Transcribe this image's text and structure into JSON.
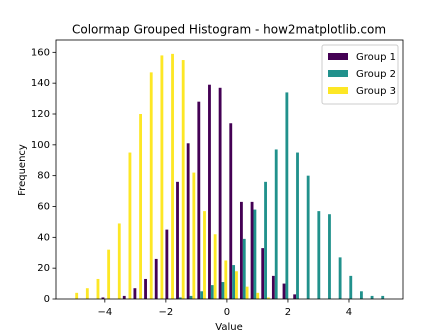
{
  "chart_data": {
    "type": "grouped-histogram",
    "title": "Colormap Grouped Histogram - how2matplotlib.com",
    "x_label": "Value",
    "y_label": "Frequency",
    "bins": [
      -5.19,
      -4.841,
      -4.492,
      -4.143,
      -3.794,
      -3.445,
      -3.096,
      -2.747,
      -2.398,
      -2.049,
      -1.7,
      -1.351,
      -1.002,
      -0.653,
      -0.304,
      0.045,
      0.394,
      0.743,
      1.092,
      1.441,
      1.79,
      2.139,
      2.488,
      2.837,
      3.186,
      3.535,
      3.884,
      4.233,
      4.582,
      4.931,
      5.28
    ],
    "series": [
      {
        "name": "Group 1",
        "color": "#440154",
        "values": [
          0,
          0,
          0,
          1,
          0,
          2,
          7,
          13,
          26,
          45,
          76,
          101,
          128,
          139,
          137,
          114,
          63,
          63,
          33,
          15,
          10,
          3,
          0,
          0,
          0,
          0,
          0,
          0,
          0,
          0
        ]
      },
      {
        "name": "Group 2",
        "color": "#21918c",
        "values": [
          0,
          0,
          0,
          0,
          0,
          0,
          0,
          0,
          0,
          0,
          1,
          2,
          5,
          9,
          11,
          22,
          39,
          58,
          76,
          97,
          134,
          95,
          80,
          57,
          55,
          27,
          15,
          5,
          2,
          2
        ]
      },
      {
        "name": "Group 3",
        "color": "#fde725",
        "values": [
          4,
          7,
          13,
          32,
          49,
          95,
          120,
          147,
          158,
          159,
          155,
          82,
          57,
          42,
          25,
          18,
          8,
          4,
          1,
          0,
          0,
          0,
          0,
          0,
          0,
          0,
          0,
          0,
          0,
          0
        ]
      }
    ],
    "xlim": [
      -5.6,
      5.77
    ],
    "xticks": [
      {
        "value": -4,
        "label": "−4"
      },
      {
        "value": -2,
        "label": "−2"
      },
      0,
      2,
      4
    ],
    "ylim": [
      0,
      168
    ],
    "yticks": [
      0,
      20,
      40,
      60,
      80,
      100,
      120,
      140,
      160
    ],
    "legend": "upper right"
  }
}
